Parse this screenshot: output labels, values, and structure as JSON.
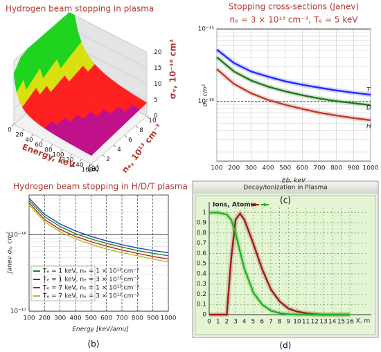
{
  "chart_data": [
    {
      "type": "surface",
      "title": "Hydrogen beam stopping in plasma",
      "panel_label": "(a)",
      "x_label": "Energy, keV",
      "y_label": "nₑ, 10¹³ cm⁻³",
      "z_label": "σᵥ, 10⁻¹⁶ cm²",
      "xlim": [
        0,
        160
      ],
      "xticks": [
        0,
        20,
        40,
        60,
        80,
        100,
        120,
        140,
        160
      ],
      "ylim": [
        0,
        10
      ],
      "yticks": [
        0,
        2,
        4,
        6,
        8,
        10
      ],
      "zlim": [
        0,
        20
      ],
      "zticks": [
        0,
        5,
        10,
        15,
        20
      ]
    },
    {
      "type": "line",
      "title": "Stopping cross-sections (Janev)",
      "subtitle": "nₑ = 3 × 10¹³ cm⁻³,  Tₑ = 5 keV",
      "panel_label": "(c)",
      "x_label": "Eb, keV",
      "y_label": "σₛ, cm²",
      "ylog": true,
      "grid": true,
      "legend": "line-end",
      "x": [
        100,
        200,
        300,
        400,
        500,
        600,
        700,
        800,
        900,
        1000
      ],
      "xlim": [
        100,
        1000
      ],
      "xticks": [
        100,
        200,
        300,
        400,
        500,
        600,
        700,
        800,
        900,
        1000
      ],
      "ylim": [
        1.5e-17,
        1e-15
      ],
      "yticks": [
        {
          "value": 1e-16,
          "label": "10⁻¹⁶"
        },
        {
          "value": 1e-15,
          "label": "10⁻¹⁵"
        }
      ],
      "series": [
        {
          "name": "T",
          "color": "#1f2bff",
          "values": [
            5.2e-16,
            3.4e-16,
            2.6e-16,
            2.2e-16,
            1.9e-16,
            1.7e-16,
            1.55e-16,
            1.42e-16,
            1.32e-16,
            1.24e-16
          ]
        },
        {
          "name": "D",
          "color": "#1a7a1a",
          "values": [
            4.1e-16,
            2.6e-16,
            1.95e-16,
            1.6e-16,
            1.38e-16,
            1.22e-16,
            1.1e-16,
            1.01e-16,
            9.5e-17,
            8.9e-17
          ]
        },
        {
          "name": "H",
          "color": "#c0392b",
          "values": [
            2.8e-16,
            1.75e-16,
            1.3e-16,
            1.05e-16,
            9e-17,
            7.9e-17,
            7e-17,
            6.4e-17,
            5.9e-17,
            5.5e-17
          ]
        }
      ]
    },
    {
      "type": "line",
      "title": "Hydrogen beam stopping in H/D/T plasma",
      "panel_label": "(b)",
      "x_label": "Energy [keV/amu]",
      "y_label": "Janev σₛ, cm²",
      "ylog": true,
      "grid": true,
      "legend": "lower left",
      "x": [
        100,
        200,
        300,
        400,
        500,
        600,
        700,
        800,
        900,
        1000
      ],
      "xlim": [
        100,
        1000
      ],
      "xticks": [
        100,
        200,
        300,
        400,
        500,
        600,
        700,
        800,
        900,
        1000
      ],
      "ylim": [
        1e-17,
        3.3e-16
      ],
      "yticks": [
        {
          "value": 1e-17,
          "label": "10⁻¹⁷"
        },
        {
          "value": 1e-16,
          "label": "10⁻¹⁶"
        }
      ],
      "series": [
        {
          "name": "Tₑ = 1 keV, nₑ = 1 × 10¹³ cm⁻³",
          "color": "#1a8a1a",
          "values": [
            2.8e-16,
            1.72e-16,
            1.28e-16,
            1.03e-16,
            8.8e-17,
            7.7e-17,
            6.9e-17,
            6.2e-17,
            5.7e-17,
            5.3e-17
          ]
        },
        {
          "name": "Tₑ = 1 keV, nₑ = 3 × 10¹³ cm⁻³",
          "color": "#1f3fd0",
          "values": [
            3e-16,
            1.85e-16,
            1.38e-16,
            1.12e-16,
            9.5e-17,
            8.3e-17,
            7.4e-17,
            6.7e-17,
            6.2e-17,
            5.8e-17
          ]
        },
        {
          "name": "Tₑ = 7 keV, nₑ = 1 × 10¹³ cm⁻³",
          "color": "#c02020",
          "values": [
            2.6e-16,
            1.58e-16,
            1.17e-16,
            9.5e-17,
            8.1e-17,
            7.1e-17,
            6.3e-17,
            5.7e-17,
            5.2e-17,
            4.8e-17
          ]
        },
        {
          "name": "Tₑ = 7 keV, nₑ = 3 × 10¹³ cm⁻³",
          "color": "#b0c020",
          "values": [
            2.45e-16,
            1.48e-16,
            1.09e-16,
            8.8e-17,
            7.5e-17,
            6.5e-17,
            5.8e-17,
            5.3e-17,
            4.8e-17,
            4.4e-17
          ]
        }
      ]
    },
    {
      "type": "line",
      "title": "Decay/Ionization in Plasma",
      "panel_label": "(d)",
      "legend_text": "Ions, Atoms",
      "x_label": "X, m",
      "grid": true,
      "legend": "top",
      "x": [
        0,
        1,
        2,
        2.5,
        3,
        3.5,
        4,
        5,
        6,
        7,
        8,
        9,
        10,
        11,
        12,
        13,
        14,
        15,
        16
      ],
      "xlim": [
        0,
        17.8
      ],
      "xticks": [
        0,
        1,
        2,
        3,
        4,
        5,
        6,
        7,
        8,
        9,
        10,
        11,
        12,
        13,
        14,
        15,
        16
      ],
      "ylim": [
        0,
        1.05
      ],
      "yticks": [
        0,
        0.1,
        0.2,
        0.3,
        0.4,
        0.5,
        0.6,
        0.7,
        0.8,
        0.9,
        1
      ],
      "series": [
        {
          "color": "#a01818",
          "values": [
            0,
            0,
            0,
            0.55,
            0.93,
            0.99,
            0.93,
            0.7,
            0.45,
            0.25,
            0.13,
            0.06,
            0.03,
            0.015,
            0.005,
            0,
            0,
            0,
            0
          ]
        },
        {
          "color": "#20b020",
          "values": [
            1,
            1,
            0.98,
            0.93,
            0.8,
            0.62,
            0.45,
            0.22,
            0.1,
            0.04,
            0.015,
            0.005,
            0,
            0,
            0,
            0,
            0,
            0,
            0
          ]
        }
      ]
    }
  ]
}
